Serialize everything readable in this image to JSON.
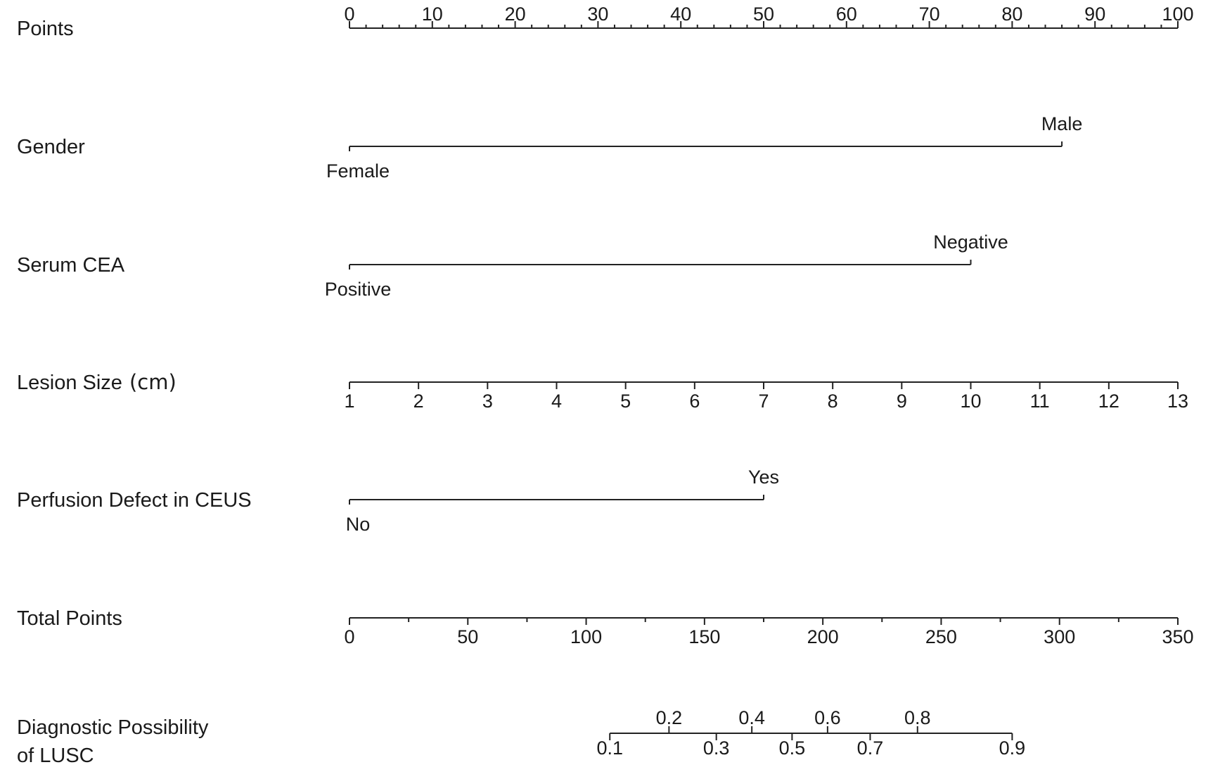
{
  "chart_data": {
    "type": "nomogram",
    "grid": false,
    "points_axis": {
      "label": "Points",
      "min": 0,
      "max": 100,
      "major_ticks": [
        0,
        10,
        20,
        30,
        40,
        50,
        60,
        70,
        80,
        90,
        100
      ],
      "minor_step": 2
    },
    "predictors": [
      {
        "label": "Gender",
        "kind": "categorical",
        "levels": [
          {
            "label": "Female",
            "points": 0,
            "side": "below"
          },
          {
            "label": "Male",
            "points": 86,
            "side": "above"
          }
        ]
      },
      {
        "label": "Serum CEA",
        "kind": "categorical",
        "levels": [
          {
            "label": "Positive",
            "points": 0,
            "side": "below"
          },
          {
            "label": "Negative",
            "points": 75,
            "side": "above"
          }
        ]
      },
      {
        "label": "Lesion Size",
        "unit": "(cm)",
        "kind": "continuous",
        "values": [
          1,
          2,
          3,
          4,
          5,
          6,
          7,
          8,
          9,
          10,
          11,
          12,
          13
        ],
        "points_at_min": 0,
        "points_at_max": 100
      },
      {
        "label": "Perfusion Defect in CEUS",
        "kind": "categorical",
        "levels": [
          {
            "label": "No",
            "points": 0,
            "side": "below"
          },
          {
            "label": "Yes",
            "points": 50,
            "side": "above"
          }
        ]
      }
    ],
    "total_points_axis": {
      "label": "Total Points",
      "min": 0,
      "max": 350,
      "major_ticks": [
        0,
        50,
        100,
        150,
        200,
        250,
        300,
        350
      ],
      "minor_step": 25
    },
    "probability_axis": {
      "label_lines": [
        "Diagnostic Possibility",
        "of LUSC"
      ],
      "ticks": [
        {
          "label": "0.1",
          "value": 0.1,
          "total_points": 110,
          "side": "below"
        },
        {
          "label": "0.2",
          "value": 0.2,
          "total_points": 135,
          "side": "above"
        },
        {
          "label": "0.3",
          "value": 0.3,
          "total_points": 155,
          "side": "below"
        },
        {
          "label": "0.4",
          "value": 0.4,
          "total_points": 170,
          "side": "above"
        },
        {
          "label": "0.5",
          "value": 0.5,
          "total_points": 187,
          "side": "below"
        },
        {
          "label": "0.6",
          "value": 0.6,
          "total_points": 202,
          "side": "above"
        },
        {
          "label": "0.7",
          "value": 0.7,
          "total_points": 220,
          "side": "below"
        },
        {
          "label": "0.8",
          "value": 0.8,
          "total_points": 240,
          "side": "above"
        },
        {
          "label": "0.9",
          "value": 0.9,
          "total_points": 280,
          "side": "below"
        }
      ]
    }
  }
}
